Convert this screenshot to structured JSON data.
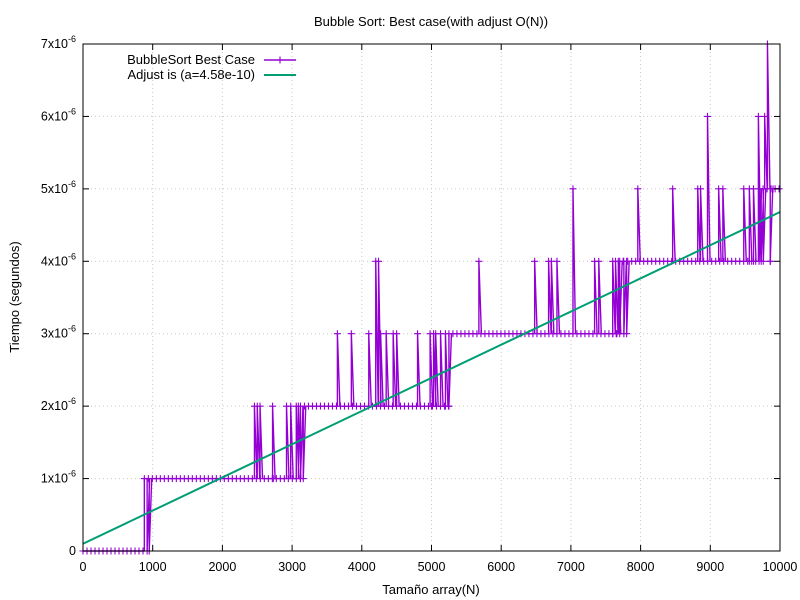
{
  "chart_data": {
    "type": "line",
    "title": "Bubble Sort: Best case(with adjust O(N))",
    "xlabel": "Tamaño array(N)",
    "ylabel": "Tiempo (segundos)",
    "xlim": [
      0,
      10000
    ],
    "ylim": [
      0,
      7e-06
    ],
    "xticks": [
      0,
      1000,
      2000,
      3000,
      4000,
      5000,
      6000,
      7000,
      8000,
      9000,
      10000
    ],
    "yticks": [
      {
        "value": 0,
        "mantissa": "0",
        "exponent": ""
      },
      {
        "value": 1e-06,
        "mantissa": "1x10",
        "exponent": "-6"
      },
      {
        "value": 2e-06,
        "mantissa": "2x10",
        "exponent": "-6"
      },
      {
        "value": 3e-06,
        "mantissa": "3x10",
        "exponent": "-6"
      },
      {
        "value": 4e-06,
        "mantissa": "4x10",
        "exponent": "-6"
      },
      {
        "value": 5e-06,
        "mantissa": "5x10",
        "exponent": "-6"
      },
      {
        "value": 6e-06,
        "mantissa": "6x10",
        "exponent": "-6"
      },
      {
        "value": 7e-06,
        "mantissa": "7x10",
        "exponent": "-6"
      }
    ],
    "grid": true,
    "legend_position": "top-left",
    "series": [
      {
        "name": "BubbleSort Best Case",
        "kind": "step-with-markers",
        "color": "#9400d3",
        "levels": [
          {
            "from": 0,
            "to": 880,
            "y": 0
          },
          {
            "from": 880,
            "to": 3120,
            "y": 1e-06
          },
          {
            "from": 3120,
            "to": 5250,
            "y": 2e-06
          },
          {
            "from": 5250,
            "to": 7700,
            "y": 3e-06
          },
          {
            "from": 7700,
            "to": 9700,
            "y": 4e-06
          },
          {
            "from": 9700,
            "to": 10000,
            "y": 5e-06
          }
        ],
        "spikes": [
          [
            920,
            0
          ],
          [
            950,
            0
          ],
          [
            2460,
            2e-06
          ],
          [
            2500,
            2e-06
          ],
          [
            2540,
            2e-06
          ],
          [
            2720,
            2e-06
          ],
          [
            2920,
            2e-06
          ],
          [
            2980,
            2e-06
          ],
          [
            3060,
            2e-06
          ],
          [
            3090,
            2e-06
          ],
          [
            3650,
            3e-06
          ],
          [
            3850,
            3e-06
          ],
          [
            4100,
            3e-06
          ],
          [
            4200,
            4e-06
          ],
          [
            4240,
            4e-06
          ],
          [
            4270,
            3e-06
          ],
          [
            4350,
            3e-06
          ],
          [
            4450,
            3e-06
          ],
          [
            4500,
            3e-06
          ],
          [
            4800,
            3e-06
          ],
          [
            4980,
            3e-06
          ],
          [
            5030,
            3e-06
          ],
          [
            5060,
            3e-06
          ],
          [
            5130,
            3e-06
          ],
          [
            5200,
            3e-06
          ],
          [
            5680,
            4e-06
          ],
          [
            6480,
            4e-06
          ],
          [
            6680,
            4e-06
          ],
          [
            6720,
            4e-06
          ],
          [
            6800,
            4e-06
          ],
          [
            7030,
            5e-06
          ],
          [
            7340,
            4e-06
          ],
          [
            7400,
            4e-06
          ],
          [
            7600,
            4e-06
          ],
          [
            7640,
            4e-06
          ],
          [
            7680,
            4e-06
          ],
          [
            7750,
            4e-06
          ],
          [
            7800,
            4e-06
          ],
          [
            7960,
            5e-06
          ],
          [
            8460,
            5e-06
          ],
          [
            8820,
            5e-06
          ],
          [
            8860,
            5e-06
          ],
          [
            8960,
            6e-06
          ],
          [
            9120,
            5e-06
          ],
          [
            9180,
            5e-06
          ],
          [
            9480,
            5e-06
          ],
          [
            9560,
            5e-06
          ],
          [
            9620,
            5e-06
          ],
          [
            9690,
            6e-06
          ],
          [
            9730,
            4e-06
          ],
          [
            9780,
            6e-06
          ],
          [
            9820,
            7e-06
          ],
          [
            9860,
            4e-06
          ],
          [
            9900,
            5e-06
          ]
        ],
        "dips": [
          [
            2730,
            1e-06
          ],
          [
            3120,
            1e-06
          ],
          [
            3160,
            1e-06
          ],
          [
            5000,
            2e-06
          ],
          [
            5200,
            2e-06
          ],
          [
            5250,
            2e-06
          ],
          [
            7600,
            3e-06
          ],
          [
            7650,
            3e-06
          ],
          [
            7700,
            3e-06
          ],
          [
            7760,
            3e-06
          ],
          [
            7800,
            3e-06
          ],
          [
            9560,
            4e-06
          ],
          [
            9620,
            4e-06
          ],
          [
            9700,
            4e-06
          ],
          [
            9760,
            4e-06
          ],
          [
            9860,
            4e-06
          ]
        ]
      },
      {
        "name": "Adjust is (a=4.58e-10)",
        "kind": "line",
        "color": "#009e73",
        "x": [
          0,
          10000
        ],
        "y": [
          1e-07,
          4.68e-06
        ]
      }
    ]
  }
}
